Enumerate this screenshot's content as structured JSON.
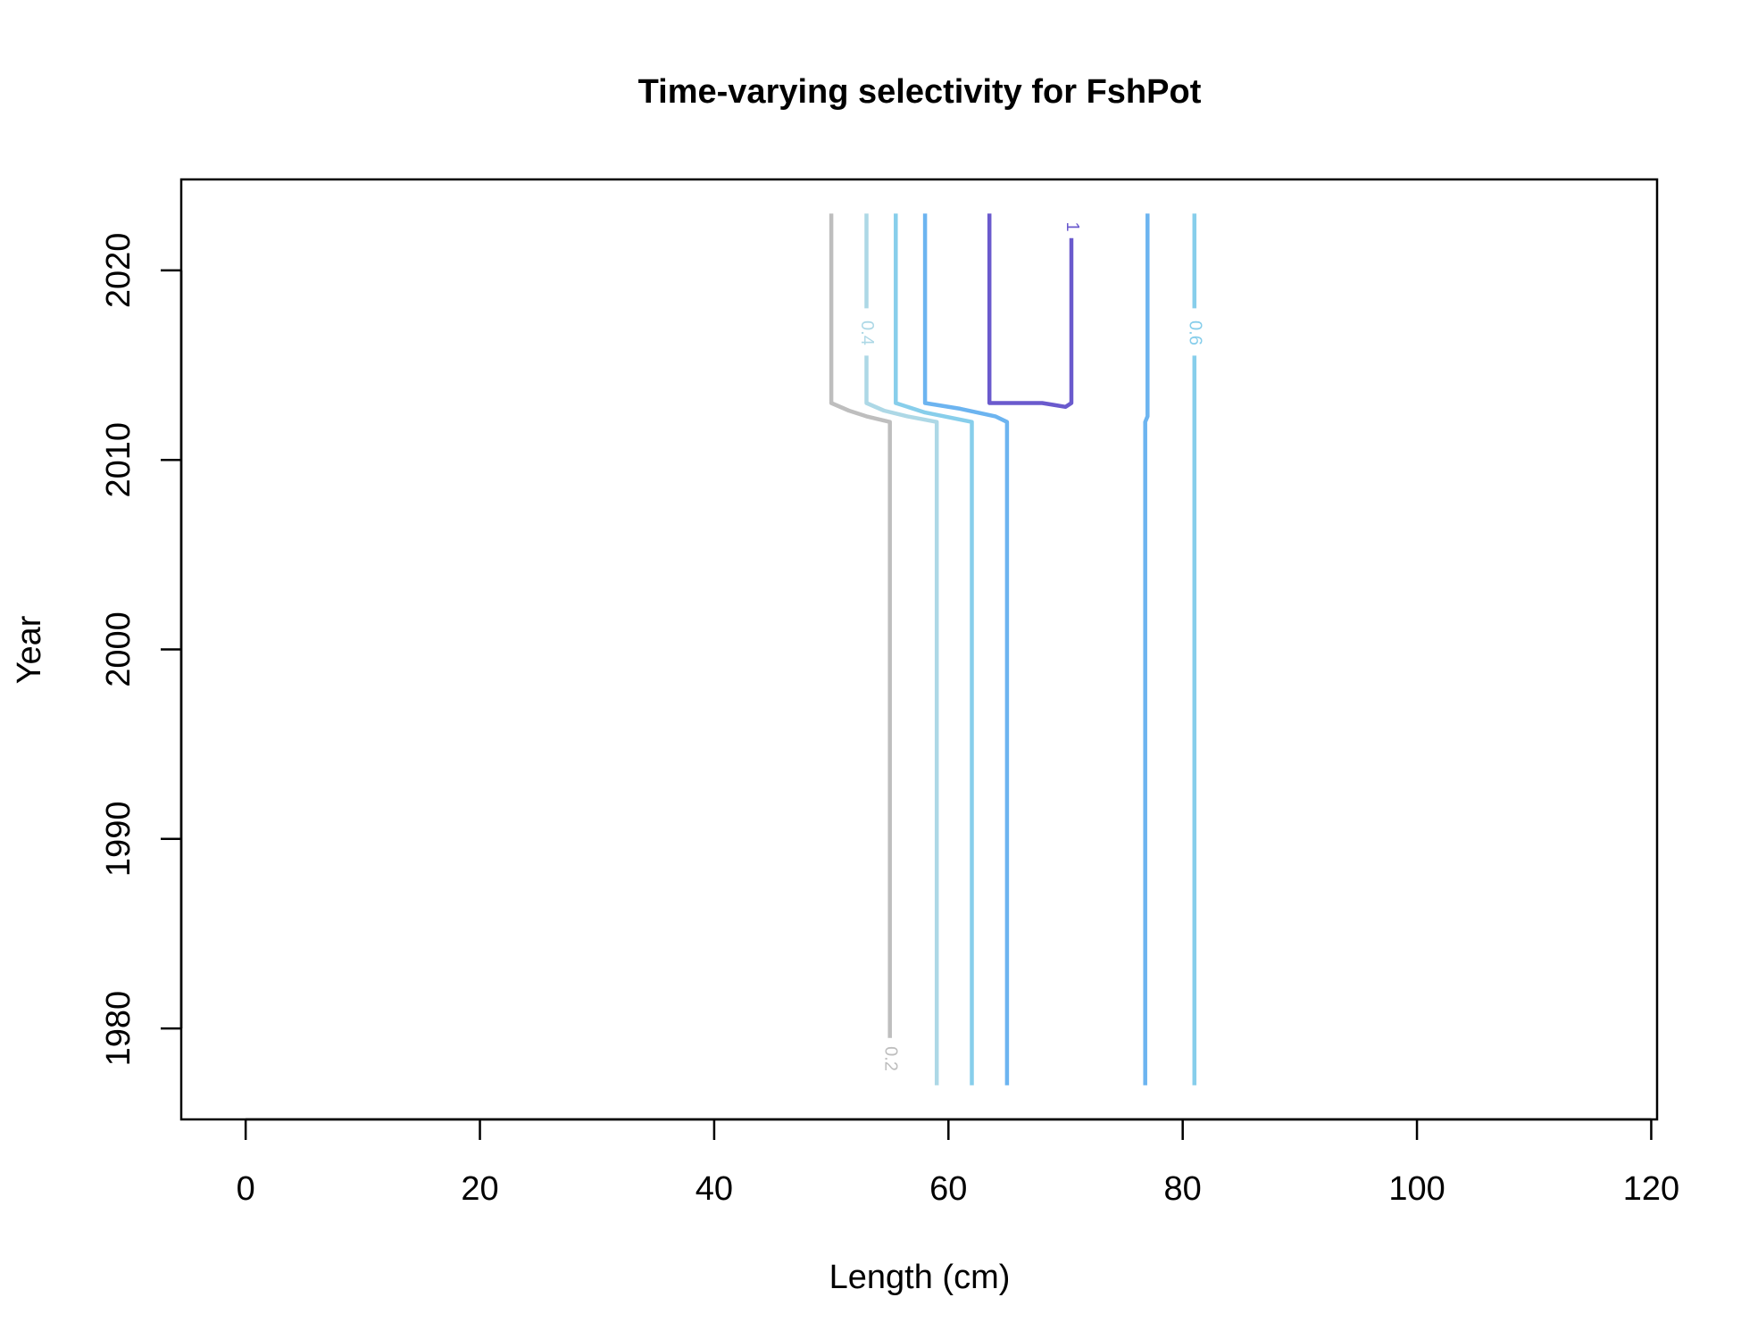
{
  "chart_data": {
    "type": "line",
    "title": "Time-varying selectivity for FshPot",
    "xlabel": "Length (cm)",
    "ylabel": "Year",
    "xlim": [
      -5.5,
      120.5
    ],
    "ylim": [
      1975.2,
      2024.8
    ],
    "x_ticks": [
      0,
      20,
      40,
      60,
      80,
      100,
      120
    ],
    "y_ticks": [
      1980,
      1990,
      2000,
      2010,
      2020
    ],
    "grid": false,
    "legend": "none",
    "series": [
      {
        "name": "0.2",
        "color": "#BEBEBE",
        "points": [
          [
            50,
            2023
          ],
          [
            50,
            2013
          ],
          [
            51.5,
            2012.6
          ],
          [
            53,
            2012.3
          ],
          [
            55,
            2012
          ],
          [
            55,
            1979.5
          ]
        ],
        "label": {
          "text": "0.2",
          "x": 55,
          "y": 1978.4
        }
      },
      {
        "name": "0.4",
        "color": "#ADD8E6",
        "points": [
          [
            53,
            2023
          ],
          [
            53,
            2018
          ],
          [
            53,
            2015.5
          ],
          [
            53,
            2013
          ],
          [
            54.5,
            2012.6
          ],
          [
            56.5,
            2012.3
          ],
          [
            59,
            2012
          ],
          [
            59,
            1977
          ]
        ],
        "label": {
          "text": "0.4",
          "x": 53,
          "y": 2016.7
        }
      },
      {
        "name": "",
        "color": "#87CEEB",
        "points": [
          [
            55.5,
            2023
          ],
          [
            55.5,
            2013
          ],
          [
            58,
            2012.5
          ],
          [
            62,
            2012
          ],
          [
            62,
            1977
          ]
        ],
        "label": null
      },
      {
        "name": "",
        "color": "#6CB4F0",
        "points": [
          [
            58,
            2023
          ],
          [
            58,
            2013
          ],
          [
            61,
            2012.7
          ],
          [
            64,
            2012.3
          ],
          [
            65,
            2012
          ],
          [
            65,
            1977
          ]
        ],
        "label": null
      },
      {
        "name": "1",
        "color": "#6A5ACD",
        "points": [
          [
            63.5,
            2023
          ],
          [
            63.5,
            2013
          ],
          [
            68,
            2013
          ],
          [
            69,
            2012.9
          ],
          [
            70,
            2012.8
          ],
          [
            70.5,
            2013
          ],
          [
            70.5,
            2021.7
          ]
        ],
        "label": {
          "text": "1",
          "x": 70.5,
          "y": 2022.3
        }
      },
      {
        "name": "",
        "color": "#6CB4F0",
        "points": [
          [
            77,
            2023
          ],
          [
            77,
            2012.3
          ],
          [
            76.8,
            2012
          ],
          [
            76.8,
            1977
          ]
        ],
        "label": null
      },
      {
        "name": "0.6",
        "color": "#87CEEB",
        "points": [
          [
            81,
            2023
          ],
          [
            81,
            2018
          ],
          [
            81,
            2015.5
          ],
          [
            81,
            2012
          ],
          [
            81,
            1977
          ]
        ],
        "label": {
          "text": "0.6",
          "x": 81,
          "y": 2016.7
        }
      }
    ]
  }
}
